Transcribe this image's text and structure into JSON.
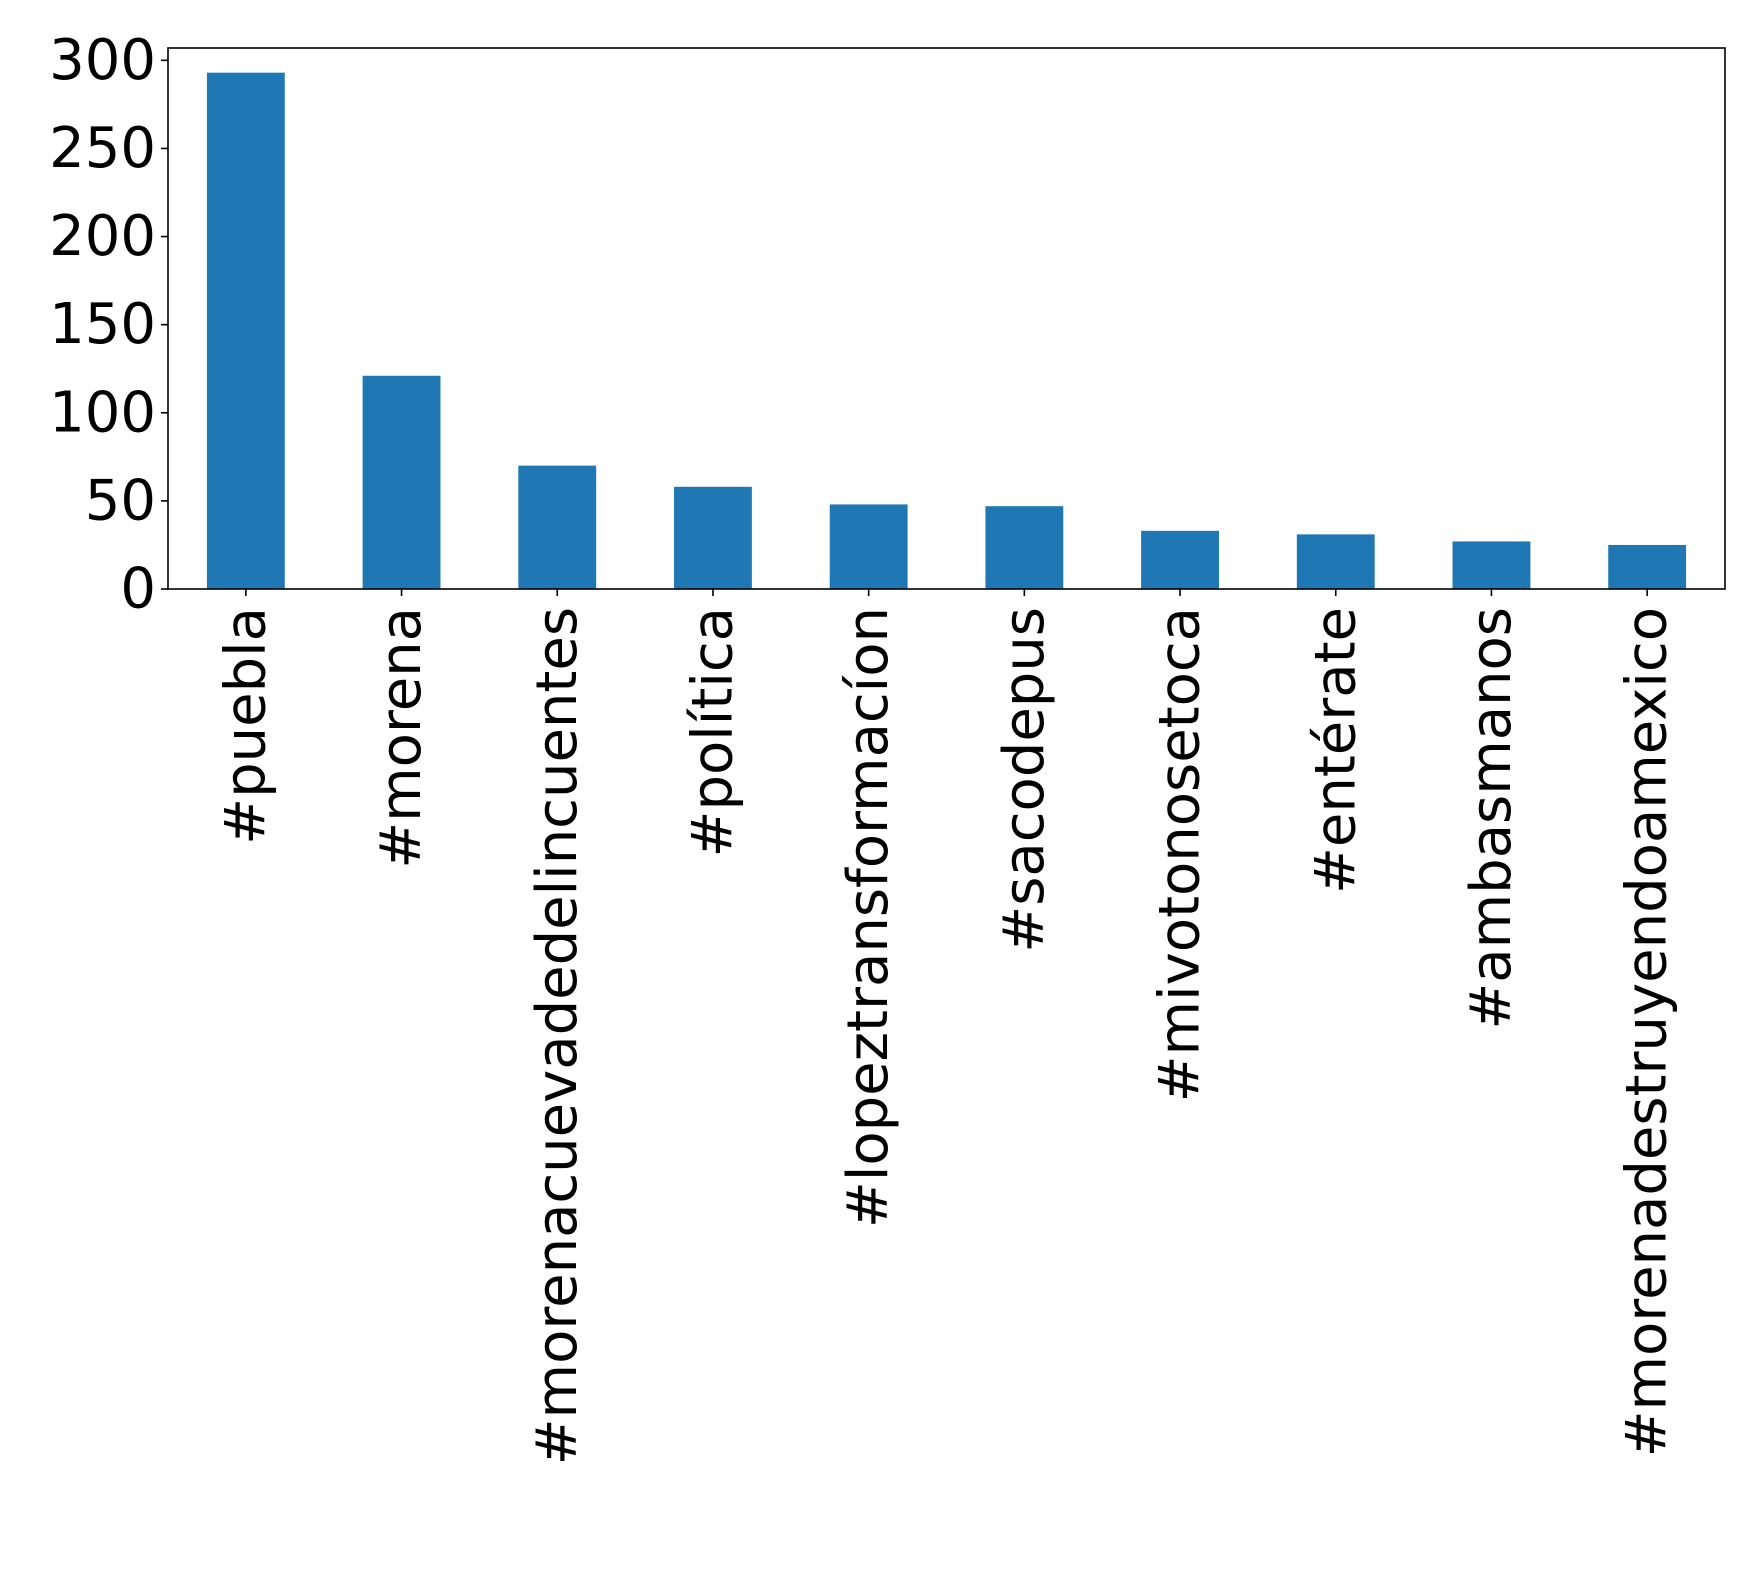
{
  "chart_data": {
    "type": "bar",
    "categories": [
      "#puebla",
      "#morena",
      "#morenacuevadedelincuentes",
      "#política",
      "#lopeztransformacíon",
      "#sacodepus",
      "#mivotonosetoca",
      "#entérate",
      "#ambasmanos",
      "#morenadestruyendoamexico"
    ],
    "values": [
      293,
      121,
      70,
      58,
      48,
      47,
      33,
      31,
      27,
      25
    ],
    "title": "",
    "xlabel": "",
    "ylabel": "",
    "ylim": [
      0,
      307
    ],
    "yticks": [
      0,
      50,
      100,
      150,
      200,
      250,
      300
    ],
    "grid": false,
    "bar_color": "#1f77b4"
  }
}
